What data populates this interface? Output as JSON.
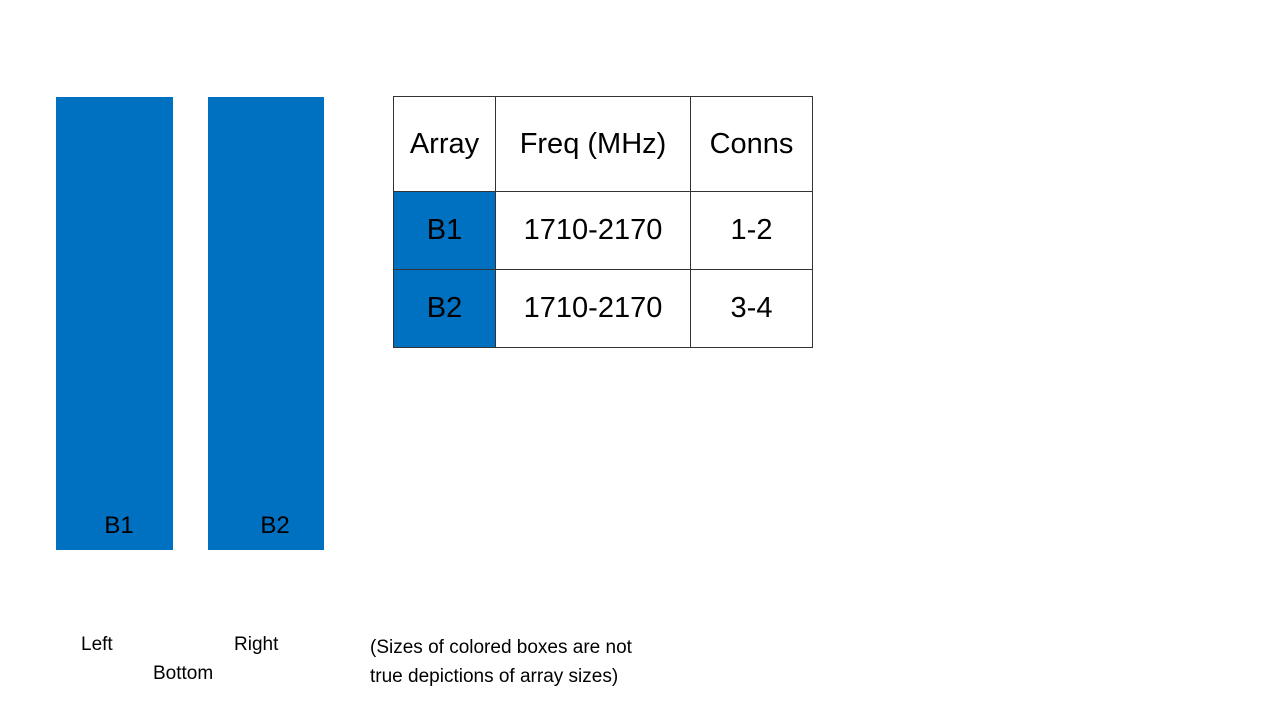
{
  "colors": {
    "array_fill": "#0070C0"
  },
  "arrays": [
    {
      "label": "B1"
    },
    {
      "label": "B2"
    }
  ],
  "table": {
    "headers": [
      "Array",
      "Freq (MHz)",
      "Conns"
    ],
    "rows": [
      [
        "B1",
        "1710-2170",
        "1-2"
      ],
      [
        "B2",
        "1710-2170",
        "3-4"
      ]
    ]
  },
  "labels": {
    "left": "Left",
    "right": "Right",
    "bottom": "Bottom",
    "note_line1": "(Sizes of colored boxes are not",
    "note_line2": "true depictions of array sizes)"
  }
}
